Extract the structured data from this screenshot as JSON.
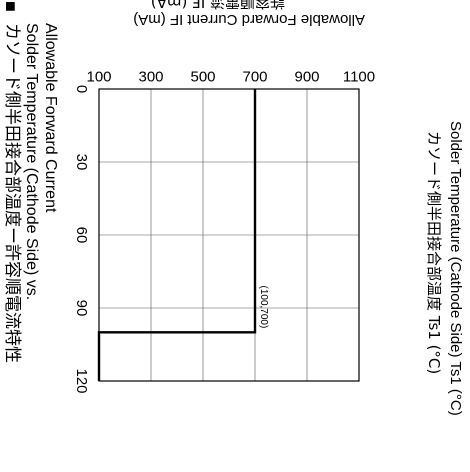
{
  "title_jp": "カソード側半田接合部温度ー許容順電流特性",
  "title_en": "Solder Temperature (Cathode Side) vs.",
  "title_en2": "Allowable Forward Current",
  "bullet": "■",
  "chart_data": {
    "type": "line",
    "x_axis": {
      "label_jp": "カソード側半田接合部温度 Ts1 (°C)",
      "label_en": "Solder Temperature (Cathode Side) Ts1 (°C)",
      "range": [
        0,
        120
      ],
      "ticks": [
        0,
        30,
        60,
        90,
        120
      ]
    },
    "y_axis": {
      "label_jp": "許容順電流 IF (mA)",
      "label_en": "Allowable Forward Current IF (mA)",
      "range": [
        100,
        1100
      ],
      "ticks": [
        100,
        300,
        500,
        700,
        900,
        1100
      ]
    },
    "grid": true,
    "series": [
      {
        "x": [
          0,
          100,
          100,
          120
        ],
        "y": [
          700,
          700,
          100,
          100
        ]
      }
    ],
    "annotations": [
      {
        "text": "(100,700)",
        "x": 100,
        "y": 700
      }
    ]
  }
}
